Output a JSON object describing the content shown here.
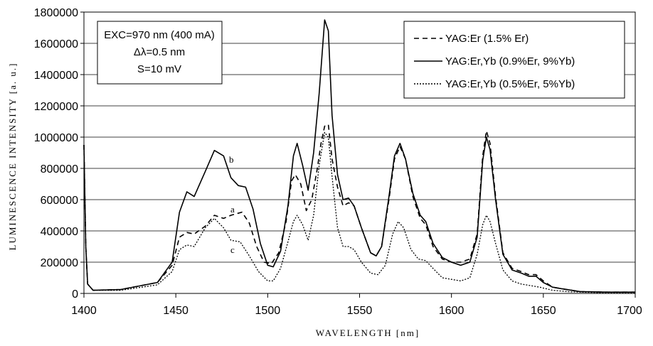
{
  "chart_data": {
    "type": "line",
    "xlabel": "WAVELENGTH   [nm]",
    "ylabel": "LUMINESCENCE INTENSITY [a. u.]",
    "xlim": [
      1400,
      1700
    ],
    "ylim": [
      0,
      1800000
    ],
    "x_ticks": [
      "1400",
      "1450",
      "1500",
      "1550",
      "1600",
      "1650",
      "1700"
    ],
    "y_ticks": [
      "0",
      "200000",
      "400000",
      "600000",
      "800000",
      "1000000",
      "1200000",
      "1400000",
      "1600000",
      "1800000"
    ],
    "grid": "horizontal",
    "legend_position": "top-right",
    "info_box": [
      "EXC=970 nm (400 mA)",
      "Δλ=0.5 nm",
      "S=10 mV"
    ],
    "annotations": [
      "a",
      "b",
      "c"
    ],
    "series": [
      {
        "name": "YAG:Er (1.5% Er)",
        "label": "a",
        "style": "dashed",
        "color": "#000000",
        "points": [
          [
            1400,
            950000
          ],
          [
            1401,
            300000
          ],
          [
            1402,
            60000
          ],
          [
            1405,
            20000
          ],
          [
            1420,
            25000
          ],
          [
            1440,
            70000
          ],
          [
            1448,
            180000
          ],
          [
            1452,
            360000
          ],
          [
            1456,
            390000
          ],
          [
            1460,
            380000
          ],
          [
            1466,
            430000
          ],
          [
            1471,
            500000
          ],
          [
            1476,
            480000
          ],
          [
            1480,
            500000
          ],
          [
            1486,
            520000
          ],
          [
            1490,
            450000
          ],
          [
            1494,
            300000
          ],
          [
            1498,
            200000
          ],
          [
            1502,
            190000
          ],
          [
            1506,
            260000
          ],
          [
            1510,
            460000
          ],
          [
            1513,
            720000
          ],
          [
            1515,
            760000
          ],
          [
            1518,
            700000
          ],
          [
            1521,
            530000
          ],
          [
            1524,
            600000
          ],
          [
            1527,
            800000
          ],
          [
            1529,
            960000
          ],
          [
            1531,
            1070000
          ],
          [
            1533,
            1080000
          ],
          [
            1535,
            860000
          ],
          [
            1538,
            680000
          ],
          [
            1541,
            560000
          ],
          [
            1544,
            580000
          ],
          [
            1547,
            560000
          ],
          [
            1551,
            420000
          ],
          [
            1556,
            260000
          ],
          [
            1559,
            240000
          ],
          [
            1562,
            300000
          ],
          [
            1566,
            600000
          ],
          [
            1569,
            860000
          ],
          [
            1572,
            940000
          ],
          [
            1575,
            860000
          ],
          [
            1579,
            620000
          ],
          [
            1583,
            480000
          ],
          [
            1586,
            440000
          ],
          [
            1590,
            300000
          ],
          [
            1595,
            220000
          ],
          [
            1600,
            200000
          ],
          [
            1605,
            200000
          ],
          [
            1610,
            220000
          ],
          [
            1614,
            380000
          ],
          [
            1617,
            880000
          ],
          [
            1619,
            1040000
          ],
          [
            1621,
            960000
          ],
          [
            1624,
            620000
          ],
          [
            1628,
            260000
          ],
          [
            1633,
            160000
          ],
          [
            1638,
            140000
          ],
          [
            1642,
            120000
          ],
          [
            1646,
            120000
          ],
          [
            1650,
            80000
          ],
          [
            1655,
            40000
          ],
          [
            1660,
            30000
          ],
          [
            1670,
            12000
          ],
          [
            1685,
            8000
          ],
          [
            1700,
            8000
          ]
        ]
      },
      {
        "name": "YAG:Er,Yb (0.9%Er, 9%Yb)",
        "label": "b",
        "style": "solid",
        "color": "#000000",
        "points": [
          [
            1400,
            950000
          ],
          [
            1401,
            300000
          ],
          [
            1402,
            60000
          ],
          [
            1405,
            20000
          ],
          [
            1420,
            25000
          ],
          [
            1440,
            70000
          ],
          [
            1448,
            200000
          ],
          [
            1452,
            520000
          ],
          [
            1456,
            650000
          ],
          [
            1460,
            620000
          ],
          [
            1466,
            780000
          ],
          [
            1471,
            915000
          ],
          [
            1476,
            880000
          ],
          [
            1480,
            740000
          ],
          [
            1484,
            690000
          ],
          [
            1488,
            680000
          ],
          [
            1492,
            540000
          ],
          [
            1496,
            320000
          ],
          [
            1500,
            180000
          ],
          [
            1503,
            170000
          ],
          [
            1507,
            270000
          ],
          [
            1511,
            560000
          ],
          [
            1514,
            880000
          ],
          [
            1516,
            960000
          ],
          [
            1519,
            820000
          ],
          [
            1522,
            660000
          ],
          [
            1525,
            900000
          ],
          [
            1528,
            1280000
          ],
          [
            1531,
            1750000
          ],
          [
            1533,
            1680000
          ],
          [
            1535,
            1140000
          ],
          [
            1538,
            760000
          ],
          [
            1541,
            600000
          ],
          [
            1544,
            610000
          ],
          [
            1547,
            560000
          ],
          [
            1551,
            420000
          ],
          [
            1556,
            260000
          ],
          [
            1559,
            240000
          ],
          [
            1562,
            300000
          ],
          [
            1566,
            620000
          ],
          [
            1569,
            880000
          ],
          [
            1572,
            960000
          ],
          [
            1575,
            860000
          ],
          [
            1579,
            640000
          ],
          [
            1583,
            500000
          ],
          [
            1586,
            460000
          ],
          [
            1590,
            320000
          ],
          [
            1595,
            230000
          ],
          [
            1600,
            200000
          ],
          [
            1605,
            180000
          ],
          [
            1610,
            200000
          ],
          [
            1614,
            360000
          ],
          [
            1617,
            850000
          ],
          [
            1619,
            1000000
          ],
          [
            1621,
            920000
          ],
          [
            1624,
            600000
          ],
          [
            1628,
            250000
          ],
          [
            1633,
            150000
          ],
          [
            1638,
            130000
          ],
          [
            1642,
            110000
          ],
          [
            1646,
            110000
          ],
          [
            1650,
            70000
          ],
          [
            1655,
            40000
          ],
          [
            1660,
            30000
          ],
          [
            1670,
            12000
          ],
          [
            1685,
            8000
          ],
          [
            1700,
            8000
          ]
        ]
      },
      {
        "name": "YAG:Er,Yb (0.5%Er, 5%Yb)",
        "label": "c",
        "style": "dotted",
        "color": "#000000",
        "points": [
          [
            1400,
            950000
          ],
          [
            1401,
            300000
          ],
          [
            1402,
            60000
          ],
          [
            1405,
            20000
          ],
          [
            1420,
            20000
          ],
          [
            1440,
            55000
          ],
          [
            1448,
            140000
          ],
          [
            1452,
            280000
          ],
          [
            1456,
            310000
          ],
          [
            1460,
            300000
          ],
          [
            1466,
            420000
          ],
          [
            1471,
            480000
          ],
          [
            1476,
            420000
          ],
          [
            1480,
            340000
          ],
          [
            1485,
            330000
          ],
          [
            1490,
            240000
          ],
          [
            1495,
            140000
          ],
          [
            1500,
            80000
          ],
          [
            1503,
            80000
          ],
          [
            1507,
            160000
          ],
          [
            1511,
            330000
          ],
          [
            1514,
            460000
          ],
          [
            1516,
            500000
          ],
          [
            1519,
            440000
          ],
          [
            1522,
            340000
          ],
          [
            1525,
            500000
          ],
          [
            1528,
            820000
          ],
          [
            1531,
            1030000
          ],
          [
            1533,
            1000000
          ],
          [
            1535,
            750000
          ],
          [
            1538,
            420000
          ],
          [
            1541,
            300000
          ],
          [
            1544,
            300000
          ],
          [
            1547,
            280000
          ],
          [
            1551,
            200000
          ],
          [
            1556,
            130000
          ],
          [
            1560,
            120000
          ],
          [
            1564,
            180000
          ],
          [
            1568,
            380000
          ],
          [
            1571,
            460000
          ],
          [
            1574,
            420000
          ],
          [
            1578,
            280000
          ],
          [
            1582,
            220000
          ],
          [
            1586,
            210000
          ],
          [
            1590,
            160000
          ],
          [
            1595,
            100000
          ],
          [
            1600,
            90000
          ],
          [
            1605,
            80000
          ],
          [
            1610,
            100000
          ],
          [
            1614,
            250000
          ],
          [
            1617,
            440000
          ],
          [
            1619,
            500000
          ],
          [
            1621,
            460000
          ],
          [
            1624,
            320000
          ],
          [
            1628,
            150000
          ],
          [
            1633,
            80000
          ],
          [
            1638,
            60000
          ],
          [
            1643,
            50000
          ],
          [
            1648,
            40000
          ],
          [
            1655,
            20000
          ],
          [
            1665,
            10000
          ],
          [
            1680,
            5000
          ],
          [
            1700,
            5000
          ]
        ]
      }
    ]
  }
}
